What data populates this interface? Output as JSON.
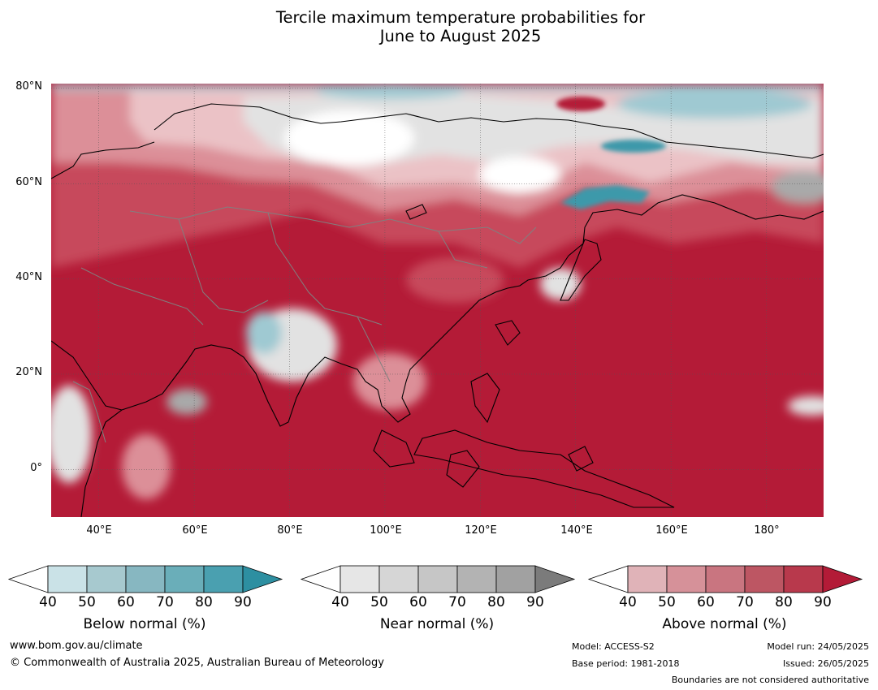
{
  "title": {
    "line1": "Tercile maximum temperature probabilities for",
    "line2": "June to August 2025"
  },
  "map": {
    "lat_labels": [
      "80°N",
      "60°N",
      "40°N",
      "20°N",
      "0°"
    ],
    "lon_labels": [
      "40°E",
      "60°E",
      "80°E",
      "100°E",
      "120°E",
      "140°E",
      "160°E",
      "180°"
    ],
    "region_lon_range": [
      30,
      192
    ],
    "region_lat_range": [
      -10,
      81
    ],
    "colors": {
      "above_strong": "#b41b37",
      "above_mid": "#c74a5c",
      "above_light": "#dc8f98",
      "above_pale": "#ebc2c6",
      "near": "#e2e2e2",
      "near_dark": "#a9a9a9",
      "below": "#9fc9d2",
      "below_strong": "#3d99aa",
      "coast": "#000000",
      "border": "#808080"
    }
  },
  "colorbars": {
    "tick_labels": [
      "40",
      "50",
      "60",
      "70",
      "80",
      "90"
    ],
    "below": {
      "label": "Below normal (%)",
      "colors": [
        "#ffffff",
        "#cae2e7",
        "#a7c9cf",
        "#87b7c1",
        "#6aaeb9",
        "#4aa0b0",
        "#2d8fa1"
      ]
    },
    "near": {
      "label": "Near normal (%)",
      "colors": [
        "#ffffff",
        "#e6e6e6",
        "#d6d6d6",
        "#c6c6c6",
        "#b3b3b3",
        "#a1a1a1",
        "#7b7b7b"
      ]
    },
    "above": {
      "label": "Above normal (%)",
      "colors": [
        "#ffffff",
        "#e0b3b8",
        "#d69199",
        "#c97580",
        "#bd5663",
        "#b8394c",
        "#b31b37"
      ]
    }
  },
  "footer": {
    "website": "www.bom.gov.au/climate",
    "copyright": "© Commonwealth of Australia 2025, Australian Bureau of Meteorology",
    "model": "Model: ACCESS-S2",
    "base_period": "Base period: 1981-2018",
    "model_run": "Model run: 24/05/2025",
    "issued": "Issued: 26/05/2025",
    "disclaimer": "Boundaries are not considered authoritative"
  }
}
